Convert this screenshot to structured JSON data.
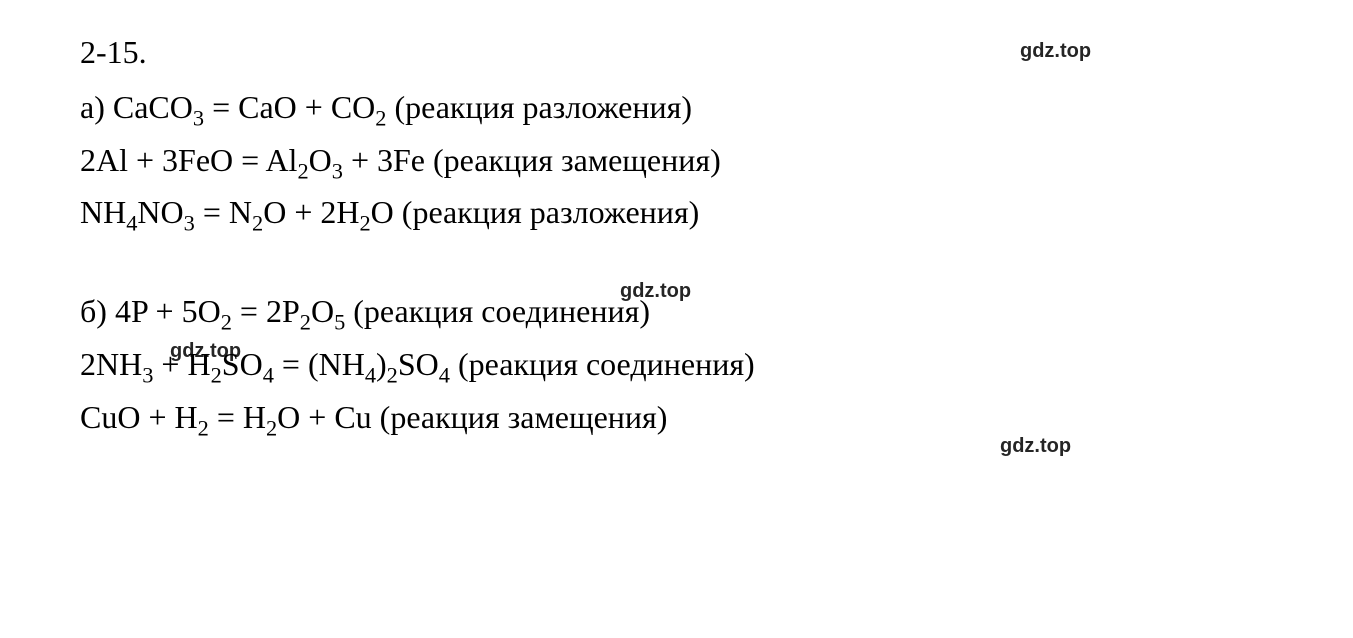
{
  "header": "2-15.",
  "section_a": {
    "label": "а)",
    "equations": [
      {
        "text": "CaCO₃ = CaO + CO₂ (реакция разложения)"
      },
      {
        "text": "2Al + 3FeO = Al₂O₃ + 3Fe (реакция замещения)"
      },
      {
        "text": "NH₄NO₃ = N₂O + 2H₂O (реакция разложения)"
      }
    ]
  },
  "section_b": {
    "label": "б)",
    "equations": [
      {
        "text": "4P + 5O₂ = 2P₂O₅ (реакция соединения)"
      },
      {
        "text": "2NH₃ + H₂SO₄ = (NH₄)₂SO₄ (реакция соединения)"
      },
      {
        "text": "CuO + H₂ = H₂O + Cu (реакция замещения)"
      }
    ]
  },
  "watermarks": [
    "gdz.top",
    "gdz.top",
    "gdz.top",
    "gdz.top"
  ],
  "colors": {
    "background": "#ffffff",
    "text": "#000000"
  },
  "font": {
    "family": "Times New Roman",
    "size_pt": 24
  }
}
